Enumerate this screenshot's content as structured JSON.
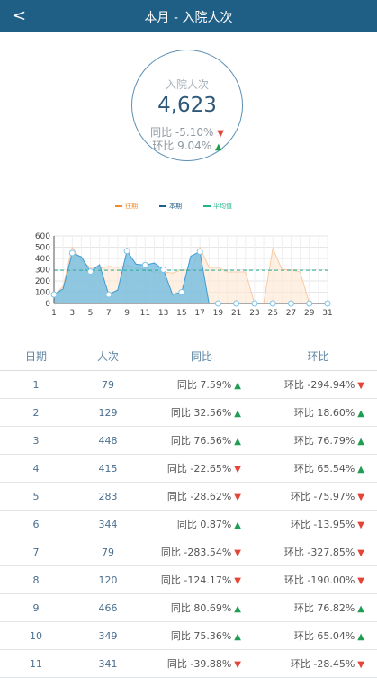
{
  "header": {
    "title": "本月 - 入院人次",
    "back_icon": "<"
  },
  "summary": {
    "label": "入院人次",
    "value": "4,623",
    "yoy_label": "同比",
    "yoy_value": "-5.10%",
    "yoy_direction": "down",
    "mom_label": "环比",
    "mom_value": "9.04%",
    "mom_direction": "up"
  },
  "legend": [
    {
      "label": "往期",
      "color": "#f28c2a"
    },
    {
      "label": "本期",
      "color": "#1f5f86"
    },
    {
      "label": "平均值",
      "color": "#1fb48c"
    }
  ],
  "chart_data": {
    "type": "area",
    "x": [
      1,
      2,
      3,
      4,
      5,
      6,
      7,
      8,
      9,
      10,
      11,
      12,
      13,
      14,
      15,
      16,
      17,
      18,
      19,
      20,
      21,
      22,
      23,
      24,
      25,
      26,
      27,
      28,
      29,
      30,
      31
    ],
    "xticks": [
      1,
      3,
      5,
      7,
      9,
      11,
      13,
      15,
      17,
      19,
      21,
      23,
      25,
      27,
      29,
      31
    ],
    "yticks": [
      0,
      100,
      200,
      300,
      400,
      500,
      600
    ],
    "ylim": [
      0,
      600
    ],
    "series": [
      {
        "name": "往期",
        "values": [
          70,
          150,
          500,
          380,
          320,
          310,
          330,
          320,
          340,
          320,
          300,
          280,
          280,
          270,
          300,
          290,
          500,
          320,
          320,
          280,
          280,
          280,
          0,
          0,
          490,
          300,
          300,
          280,
          0,
          0,
          0
        ]
      },
      {
        "name": "本期",
        "values": [
          79,
          129,
          448,
          415,
          283,
          344,
          79,
          120,
          466,
          349,
          341,
          360,
          300,
          80,
          100,
          420,
          460,
          0,
          0,
          0,
          0,
          0,
          0,
          0,
          0,
          0,
          0,
          0,
          0,
          0,
          0
        ]
      }
    ],
    "average": 295,
    "grid": true
  },
  "table": {
    "headers": [
      "日期",
      "人次",
      "同比",
      "环比"
    ],
    "rows": [
      {
        "date": "1",
        "count": "79",
        "yoy": "同比 7.59%",
        "yoy_dir": "up",
        "mom": "环比 -294.94%",
        "mom_dir": "down"
      },
      {
        "date": "2",
        "count": "129",
        "yoy": "同比 32.56%",
        "yoy_dir": "up",
        "mom": "环比 18.60%",
        "mom_dir": "up"
      },
      {
        "date": "3",
        "count": "448",
        "yoy": "同比 76.56%",
        "yoy_dir": "up",
        "mom": "环比 76.79%",
        "mom_dir": "up"
      },
      {
        "date": "4",
        "count": "415",
        "yoy": "同比 -22.65%",
        "yoy_dir": "down",
        "mom": "环比 65.54%",
        "mom_dir": "up"
      },
      {
        "date": "5",
        "count": "283",
        "yoy": "同比 -28.62%",
        "yoy_dir": "down",
        "mom": "环比 -75.97%",
        "mom_dir": "down"
      },
      {
        "date": "6",
        "count": "344",
        "yoy": "同比 0.87%",
        "yoy_dir": "up",
        "mom": "环比 -13.95%",
        "mom_dir": "down"
      },
      {
        "date": "7",
        "count": "79",
        "yoy": "同比 -283.54%",
        "yoy_dir": "down",
        "mom": "环比 -327.85%",
        "mom_dir": "down"
      },
      {
        "date": "8",
        "count": "120",
        "yoy": "同比 -124.17%",
        "yoy_dir": "down",
        "mom": "环比 -190.00%",
        "mom_dir": "down"
      },
      {
        "date": "9",
        "count": "466",
        "yoy": "同比 80.69%",
        "yoy_dir": "up",
        "mom": "环比 76.82%",
        "mom_dir": "up"
      },
      {
        "date": "10",
        "count": "349",
        "yoy": "同比 75.36%",
        "yoy_dir": "up",
        "mom": "环比 65.04%",
        "mom_dir": "up"
      },
      {
        "date": "11",
        "count": "341",
        "yoy": "同比 -39.88%",
        "yoy_dir": "down",
        "mom": "环比 -28.45%",
        "mom_dir": "down"
      }
    ]
  }
}
